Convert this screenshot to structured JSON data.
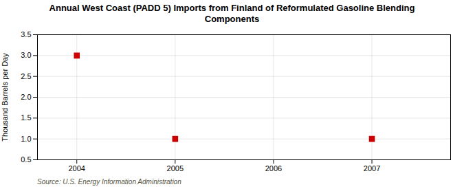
{
  "chart_data": {
    "type": "scatter",
    "title": "Annual West Coast (PADD 5) Imports from Finland of Reformulated Gasoline Blending\nComponents",
    "ylabel": "Thousand Barrels per Day",
    "source": "Source: U.S. Energy Information Administration",
    "x": [
      2004,
      2005,
      2007
    ],
    "values": [
      3.0,
      1.0,
      1.0
    ],
    "color": "#cc0000",
    "marker": "square",
    "xlim": [
      2003.6,
      2007.8
    ],
    "xticks": [
      2004,
      2005,
      2006,
      2007
    ],
    "ylim": [
      0.5,
      3.5
    ],
    "yticks": [
      0.5,
      {
        "value": 1,
        "label": "1.0"
      },
      1.5,
      {
        "value": 2,
        "label": "2.0"
      },
      2.5,
      {
        "value": 3,
        "label": "3.0"
      },
      3.5
    ],
    "grid": true
  }
}
